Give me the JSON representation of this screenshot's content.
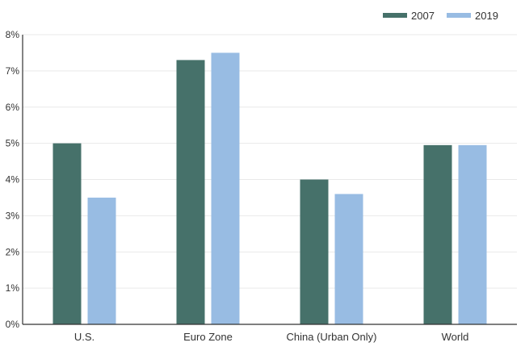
{
  "chart_data": {
    "type": "bar",
    "categories": [
      "U.S.",
      "Euro Zone",
      "China (Urban Only)",
      "World"
    ],
    "series": [
      {
        "name": "2007",
        "color": "#46716a",
        "values": [
          5.0,
          7.3,
          4.0,
          4.95
        ]
      },
      {
        "name": "2019",
        "color": "#98bce3",
        "values": [
          3.5,
          7.5,
          3.6,
          4.95
        ]
      }
    ],
    "ylim": [
      0,
      8
    ],
    "yticks": [
      0,
      1,
      2,
      3,
      4,
      5,
      6,
      7,
      8
    ],
    "ytick_labels": [
      "0%",
      "1%",
      "2%",
      "3%",
      "4%",
      "5%",
      "6%",
      "7%",
      "8%"
    ],
    "grid": true,
    "legend": "top-right",
    "title": "",
    "xlabel": "",
    "ylabel": ""
  }
}
